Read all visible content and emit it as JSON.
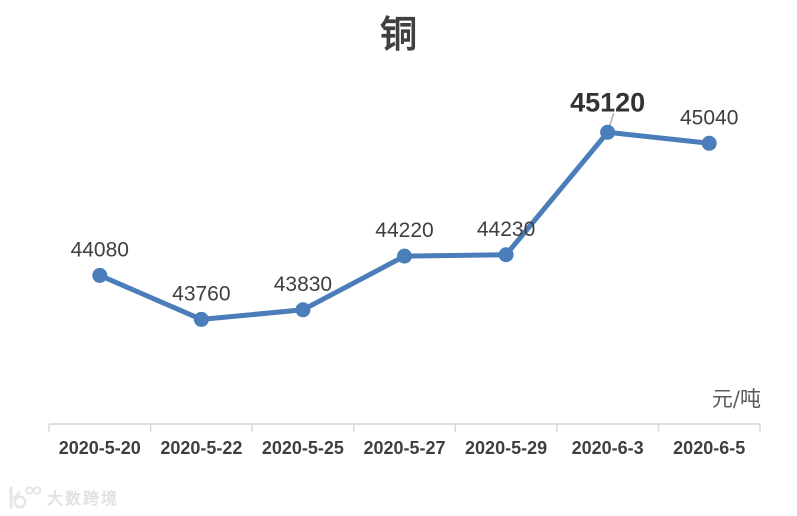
{
  "header": {
    "title": "铜"
  },
  "axis_note": {
    "unit_label": "元/吨"
  },
  "watermark": {
    "logo_icon": "dashu-kuajing-logo-icon",
    "text": "大数跨境"
  },
  "chart_data": {
    "type": "line",
    "title": "铜",
    "categories": [
      "2020-5-20",
      "2020-5-22",
      "2020-5-25",
      "2020-5-27",
      "2020-5-29",
      "2020-6-3",
      "2020-6-5"
    ],
    "values": [
      44080,
      43760,
      43830,
      44220,
      44230,
      45120,
      45040
    ],
    "data_labels": [
      "44080",
      "43760",
      "43830",
      "44220",
      "44230",
      "45120",
      "45040"
    ],
    "emphasized_label_index": 5,
    "unit": "元/吨",
    "xlabel": "",
    "ylabel": "",
    "ylim": [
      43000,
      45500
    ],
    "grid": false,
    "legend": "none",
    "marker": "circle",
    "line_color": "#4a7db9",
    "axis_line_color": "#d9d9d9",
    "leader_line_color": "#b5b1aa",
    "label_color": "#3f3f3f",
    "emphasized_label_color": "#333333"
  }
}
